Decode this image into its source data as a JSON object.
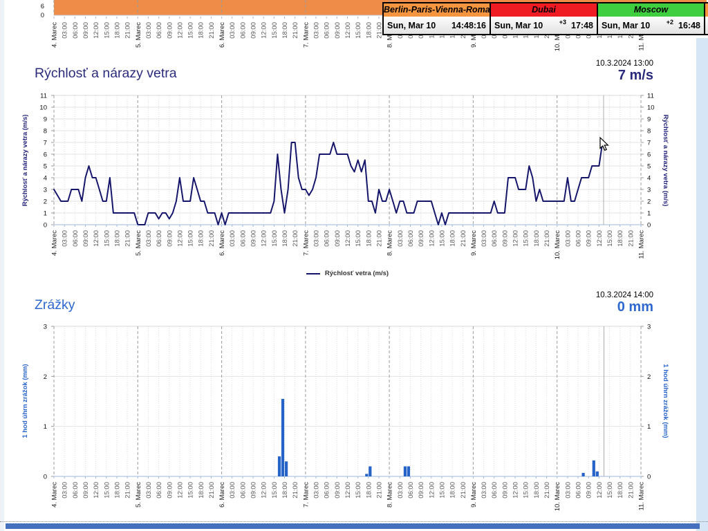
{
  "page": {
    "bottom_bar_color": "#4470BE",
    "edge_strip_color": "#D7E6F6"
  },
  "clock_widget": {
    "cells": [
      {
        "city": "Berlin-Paris-Vienna-Roma",
        "header_color": "#F6953F",
        "date": "Sun, Mar 10",
        "tz_offset": "",
        "time": "14:48:16"
      },
      {
        "city": "Dubai",
        "header_color": "#EF1D23",
        "date": "Sun, Mar 10",
        "tz_offset": "+3",
        "time": "17:48"
      },
      {
        "city": "Moscow",
        "header_color": "#3FCE3F",
        "date": "Sun, Mar 10",
        "tz_offset": "+2",
        "time": "16:48"
      }
    ],
    "partial_cell_color": "#F6953F"
  },
  "wind_section": {
    "title": "Rýchlosť a nárazy vetra",
    "timestamp": "10.3.2024 13:00",
    "current_value": "7 m/s",
    "legend_label": "Rýchlosť vetra (m/s)"
  },
  "precip_section": {
    "title": "Zrážky",
    "timestamp": "10.3.2024 14:00",
    "current_value": "0 mm"
  },
  "time_axis": {
    "day_labels": [
      "4. Marec",
      "5. Marec",
      "6. Marec",
      "7. Marec",
      "8. Marec",
      "9. Marec",
      "10. Marec",
      "11. Marec"
    ],
    "hour_labels": [
      "03:00",
      "06:00",
      "09:00",
      "12:00",
      "15:00",
      "18:00",
      "21:00"
    ]
  },
  "chart_data": [
    {
      "id": "temperature_strip",
      "type": "area",
      "note": "only bottom edge of an orange area chart is visible, cropped by top of viewport",
      "fill_color": "#EF8C47",
      "y_ticks": [
        0,
        6
      ],
      "x_range": [
        "4. Marec",
        "11. Marec"
      ]
    },
    {
      "id": "wind",
      "type": "line",
      "title": "Rýchlosť a nárazy vetra",
      "ylabel": "Rýchlosť a nárazy vetra (m/s)",
      "legend": [
        "Rýchlosť vetra (m/s)"
      ],
      "ylim": [
        0,
        11
      ],
      "y_ticks": [
        0,
        1,
        2,
        3,
        4,
        5,
        6,
        7,
        8,
        9,
        10,
        11
      ],
      "line_color": "#15156B",
      "x_start": "4. Marec 00:00",
      "x_step_hours": 1,
      "current_marker": {
        "timestamp": "10.3.2024 13:00",
        "value_ms": 7
      },
      "values": [
        3,
        2.5,
        2,
        2,
        2,
        3,
        3,
        3,
        2,
        4,
        5,
        4,
        4,
        3,
        2,
        2,
        4,
        1,
        1,
        1,
        1,
        1,
        1,
        1,
        0,
        0,
        0,
        1,
        1,
        1,
        0.5,
        1,
        1,
        0.5,
        1,
        2,
        4,
        2,
        2,
        2,
        4,
        3,
        2,
        2,
        1,
        1,
        1,
        0,
        1,
        0,
        1,
        1,
        1,
        1,
        1,
        1,
        1,
        1,
        1,
        1,
        1,
        1,
        1,
        2,
        6,
        3,
        1,
        3,
        7,
        7,
        4,
        3,
        3,
        2.5,
        3,
        4,
        6,
        6,
        6,
        6,
        7,
        6,
        6,
        6,
        6,
        5,
        4.5,
        5.5,
        4.5,
        5.5,
        2,
        2,
        1,
        3,
        2,
        2,
        3,
        2,
        1,
        2,
        2,
        1,
        1,
        1,
        2,
        2,
        2,
        2,
        2,
        1,
        0,
        1,
        0,
        1,
        1,
        1,
        1,
        1,
        1,
        1,
        1,
        1,
        1,
        1,
        1,
        1,
        2,
        1,
        1,
        1,
        4,
        4,
        4,
        3,
        3,
        3,
        5,
        4,
        2,
        3,
        2,
        2,
        2,
        2,
        2,
        2,
        2,
        4,
        2,
        2,
        3,
        4,
        4,
        4,
        5,
        5,
        5,
        7
      ]
    },
    {
      "id": "precipitation",
      "type": "bar",
      "title": "Zrážky",
      "ylabel": "1 hod úhrn zrážok (mm)",
      "ylim": [
        0,
        3
      ],
      "y_ticks": [
        0,
        1,
        2,
        3
      ],
      "bar_color": "#2563C8",
      "current_marker": {
        "timestamp": "10.3.2024 14:00",
        "value_mm": 0
      },
      "bars": [
        {
          "hours_from_mar4": 64,
          "mm": 0.4
        },
        {
          "hours_from_mar4": 65,
          "mm": 1.55
        },
        {
          "hours_from_mar4": 66,
          "mm": 0.3
        },
        {
          "hours_from_mar4": 89,
          "mm": 0.05
        },
        {
          "hours_from_mar4": 90,
          "mm": 0.2
        },
        {
          "hours_from_mar4": 100,
          "mm": 0.2
        },
        {
          "hours_from_mar4": 101,
          "mm": 0.2
        },
        {
          "hours_from_mar4": 151,
          "mm": 0.07
        },
        {
          "hours_from_mar4": 154,
          "mm": 0.32
        },
        {
          "hours_from_mar4": 155,
          "mm": 0.1
        }
      ]
    }
  ]
}
